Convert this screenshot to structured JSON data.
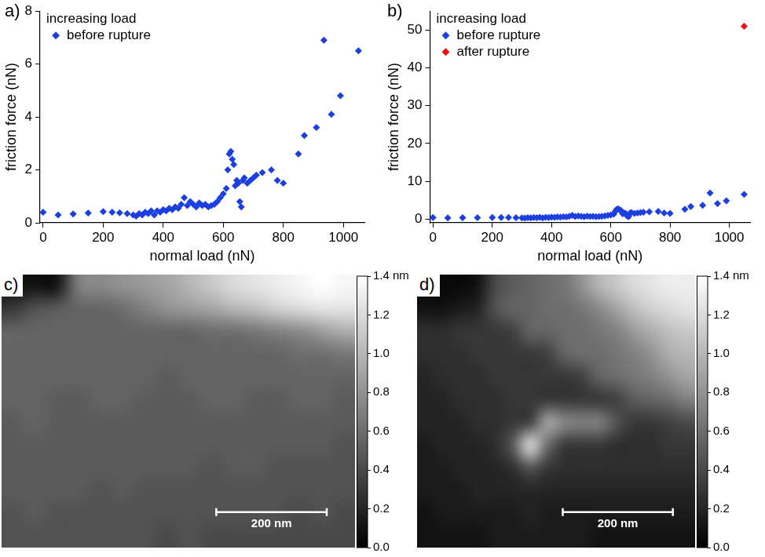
{
  "chart_data": [
    {
      "type": "scatter",
      "panel": "a)",
      "legend_title": "increasing load",
      "legend": "upper left",
      "x_label": "normal load (nN)",
      "y_label": "friction force (nN)",
      "xlim": [
        -10,
        1070
      ],
      "xticks": [
        0,
        200,
        400,
        600,
        800,
        1000
      ],
      "ylim": [
        0,
        8
      ],
      "yticks": [
        0,
        2,
        4,
        6,
        8
      ],
      "grid": false,
      "series": [
        {
          "name": "before rupture",
          "color": "#1c3fe0",
          "marker": "diamond",
          "x": [
            0,
            50,
            100,
            150,
            200,
            230,
            255,
            280,
            300,
            310,
            320,
            330,
            340,
            350,
            360,
            370,
            380,
            390,
            400,
            410,
            420,
            430,
            440,
            450,
            460,
            470,
            480,
            490,
            500,
            510,
            520,
            530,
            540,
            550,
            560,
            570,
            580,
            590,
            600,
            610,
            615,
            620,
            625,
            630,
            635,
            640,
            645,
            650,
            655,
            660,
            665,
            670,
            680,
            690,
            700,
            710,
            730,
            760,
            780,
            800,
            850,
            870,
            910,
            935,
            960,
            990,
            1050
          ],
          "values": [
            0.4,
            0.3,
            0.33,
            0.37,
            0.42,
            0.4,
            0.38,
            0.35,
            0.3,
            0.25,
            0.35,
            0.3,
            0.4,
            0.35,
            0.45,
            0.3,
            0.45,
            0.4,
            0.5,
            0.45,
            0.55,
            0.5,
            0.6,
            0.55,
            0.7,
            0.95,
            0.65,
            0.8,
            0.7,
            0.6,
            0.75,
            0.65,
            0.7,
            0.6,
            0.65,
            0.7,
            0.8,
            0.95,
            1.1,
            1.3,
            2.0,
            2.6,
            2.7,
            2.4,
            2.2,
            1.4,
            1.6,
            1.5,
            0.8,
            0.6,
            1.6,
            1.7,
            1.5,
            1.6,
            1.7,
            1.8,
            1.9,
            2.0,
            1.6,
            1.5,
            2.6,
            3.3,
            3.6,
            6.9,
            4.1,
            4.8,
            6.5
          ]
        }
      ]
    },
    {
      "type": "scatter",
      "panel": "b)",
      "legend_title": "increasing load",
      "legend": "upper left",
      "x_label": "normal load (nN)",
      "y_label": "friction force (nN)",
      "xlim": [
        -10,
        1070
      ],
      "xticks": [
        0,
        200,
        400,
        600,
        800,
        1000
      ],
      "ylim": [
        -1,
        55
      ],
      "yticks": [
        0,
        10,
        20,
        30,
        40,
        50
      ],
      "grid": false,
      "series": [
        {
          "name": "before rupture",
          "color": "#1c3fe0",
          "marker": "diamond",
          "x": [
            0,
            50,
            100,
            150,
            200,
            230,
            255,
            280,
            300,
            310,
            320,
            330,
            340,
            350,
            360,
            370,
            380,
            390,
            400,
            410,
            420,
            430,
            440,
            450,
            460,
            470,
            480,
            490,
            500,
            510,
            520,
            530,
            540,
            550,
            560,
            570,
            580,
            590,
            600,
            610,
            615,
            620,
            625,
            630,
            635,
            640,
            645,
            650,
            655,
            660,
            665,
            670,
            680,
            690,
            700,
            710,
            730,
            760,
            780,
            800,
            850,
            870,
            910,
            935,
            960,
            990,
            1050
          ],
          "values": [
            0.4,
            0.3,
            0.33,
            0.37,
            0.42,
            0.4,
            0.38,
            0.35,
            0.3,
            0.25,
            0.35,
            0.3,
            0.4,
            0.35,
            0.45,
            0.3,
            0.45,
            0.4,
            0.5,
            0.45,
            0.55,
            0.5,
            0.6,
            0.55,
            0.7,
            0.95,
            0.65,
            0.8,
            0.7,
            0.6,
            0.75,
            0.65,
            0.7,
            0.6,
            0.65,
            0.7,
            0.8,
            0.95,
            1.1,
            1.3,
            2.0,
            2.6,
            2.7,
            2.4,
            2.2,
            1.4,
            1.6,
            1.5,
            0.8,
            0.6,
            1.6,
            1.7,
            1.5,
            1.6,
            1.7,
            1.8,
            1.9,
            2.0,
            1.6,
            1.5,
            2.6,
            3.3,
            3.6,
            6.9,
            4.1,
            4.8,
            6.5
          ]
        },
        {
          "name": "after rupture",
          "color": "#f01010",
          "marker": "diamond",
          "x": [
            1050
          ],
          "values": [
            51
          ]
        }
      ]
    },
    {
      "type": "heatmap",
      "panel": "c)",
      "xlim": [
        0,
        640
      ],
      "ylim": [
        0,
        500
      ],
      "cells": [
        [
          0.1,
          0.1,
          0.1,
          0.7,
          0.75,
          0.8,
          0.85,
          0.9,
          1.0,
          1.1,
          1.2,
          1.25,
          1.3,
          1.35,
          1.4,
          1.35
        ],
        [
          0.3,
          0.45,
          0.5,
          0.55,
          0.55,
          0.6,
          0.7,
          0.8,
          0.85,
          0.9,
          1.0,
          1.05,
          1.15,
          1.2,
          1.25,
          1.25
        ],
        [
          0.55,
          0.55,
          0.55,
          0.55,
          0.55,
          0.55,
          0.55,
          0.55,
          0.55,
          0.6,
          0.6,
          0.65,
          0.7,
          0.75,
          0.85,
          0.95
        ],
        [
          0.55,
          0.55,
          0.55,
          0.55,
          0.55,
          0.55,
          0.55,
          0.55,
          0.55,
          0.55,
          0.55,
          0.55,
          0.55,
          0.6,
          0.6,
          0.65
        ],
        [
          0.55,
          0.55,
          0.55,
          0.55,
          0.55,
          0.55,
          0.55,
          0.5,
          0.55,
          0.55,
          0.55,
          0.55,
          0.55,
          0.55,
          0.55,
          0.55
        ],
        [
          0.55,
          0.55,
          0.5,
          0.5,
          0.55,
          0.55,
          0.5,
          0.5,
          0.5,
          0.55,
          0.55,
          0.5,
          0.5,
          0.55,
          0.55,
          0.5
        ],
        [
          0.5,
          0.55,
          0.5,
          0.5,
          0.5,
          0.5,
          0.5,
          0.5,
          0.5,
          0.5,
          0.5,
          0.5,
          0.5,
          0.5,
          0.5,
          0.5
        ],
        [
          0.5,
          0.5,
          0.5,
          0.5,
          0.5,
          0.5,
          0.5,
          0.5,
          0.5,
          0.5,
          0.5,
          0.5,
          0.5,
          0.5,
          0.5,
          0.45
        ],
        [
          0.5,
          0.5,
          0.5,
          0.5,
          0.5,
          0.5,
          0.5,
          0.5,
          0.5,
          0.45,
          0.5,
          0.5,
          0.45,
          0.45,
          0.45,
          0.45
        ],
        [
          0.5,
          0.5,
          0.5,
          0.5,
          0.45,
          0.5,
          0.45,
          0.45,
          0.45,
          0.45,
          0.45,
          0.45,
          0.45,
          0.45,
          0.45,
          0.45
        ],
        [
          0.45,
          0.5,
          0.45,
          0.45,
          0.45,
          0.45,
          0.45,
          0.45,
          0.45,
          0.45,
          0.45,
          0.45,
          0.45,
          0.4,
          0.45,
          0.4
        ],
        [
          0.45,
          0.45,
          0.45,
          0.45,
          0.45,
          0.45,
          0.45,
          0.4,
          0.45,
          0.4,
          0.4,
          0.4,
          0.4,
          0.4,
          0.4,
          0.4
        ]
      ],
      "colorbar": {
        "range": [
          0,
          1.4
        ],
        "ticks": [
          {
            "value": 0,
            "label": "0.0"
          },
          0.2,
          0.4,
          0.6,
          0.8,
          {
            "value": 1,
            "label": "1.0"
          },
          1.2,
          {
            "value": 1.4,
            "label": "1.4 nm"
          }
        ]
      },
      "scale_bar": {
        "length": 200,
        "label": "200 nm"
      }
    },
    {
      "type": "heatmap",
      "panel": "d)",
      "xlim": [
        0,
        505
      ],
      "ylim": [
        0,
        500
      ],
      "cells": [
        [
          0.05,
          0.05,
          0.05,
          0.1,
          0.4,
          0.5,
          0.55,
          0.6,
          0.65,
          0.8,
          1.0,
          1.1,
          1.2,
          1.25,
          1.3,
          1.3
        ],
        [
          0.1,
          0.1,
          0.15,
          0.2,
          0.45,
          0.55,
          0.55,
          0.6,
          0.6,
          0.65,
          0.75,
          0.9,
          1.05,
          1.15,
          1.2,
          1.25
        ],
        [
          0.25,
          0.25,
          0.3,
          0.3,
          0.3,
          0.35,
          0.55,
          0.55,
          0.6,
          0.6,
          0.65,
          0.7,
          0.85,
          0.95,
          1.05,
          1.1
        ],
        [
          0.25,
          0.25,
          0.25,
          0.3,
          0.3,
          0.3,
          0.3,
          0.35,
          0.55,
          0.6,
          0.6,
          0.65,
          0.7,
          0.8,
          0.95,
          1.0
        ],
        [
          0.2,
          0.25,
          0.25,
          0.25,
          0.3,
          0.3,
          0.3,
          0.3,
          0.3,
          0.35,
          0.55,
          0.6,
          0.65,
          0.7,
          0.8,
          0.9
        ],
        [
          0.2,
          0.2,
          0.25,
          0.25,
          0.25,
          0.3,
          0.3,
          0.3,
          0.3,
          0.3,
          0.3,
          0.35,
          0.5,
          0.55,
          0.6,
          0.7
        ],
        [
          0.2,
          0.2,
          0.2,
          0.25,
          0.25,
          0.3,
          0.35,
          0.9,
          0.75,
          0.7,
          0.7,
          0.45,
          0.3,
          0.3,
          0.35,
          0.4
        ],
        [
          0.15,
          0.2,
          0.2,
          0.2,
          0.25,
          0.5,
          1.2,
          0.6,
          0.3,
          0.3,
          0.3,
          0.25,
          0.25,
          0.25,
          0.3,
          0.3
        ],
        [
          0.15,
          0.15,
          0.2,
          0.2,
          0.2,
          0.25,
          0.45,
          0.3,
          0.25,
          0.25,
          0.25,
          0.25,
          0.25,
          0.25,
          0.25,
          0.25
        ],
        [
          0.15,
          0.15,
          0.15,
          0.2,
          0.2,
          0.2,
          0.2,
          0.2,
          0.2,
          0.2,
          0.2,
          0.2,
          0.2,
          0.2,
          0.2,
          0.2
        ],
        [
          0.1,
          0.15,
          0.15,
          0.15,
          0.15,
          0.15,
          0.2,
          0.15,
          0.15,
          0.15,
          0.15,
          0.15,
          0.15,
          0.15,
          0.15,
          0.15
        ],
        [
          0.1,
          0.1,
          0.1,
          0.1,
          0.15,
          0.15,
          0.15,
          0.15,
          0.15,
          0.15,
          0.1,
          0.1,
          0.1,
          0.1,
          0.1,
          0.1
        ]
      ],
      "colorbar": {
        "range": [
          0,
          1.4
        ],
        "ticks": [
          {
            "value": 0,
            "label": "0.0"
          },
          0.2,
          0.4,
          0.6,
          0.8,
          {
            "value": 1,
            "label": "1.0"
          },
          1.2,
          {
            "value": 1.4,
            "label": "1.4 nm"
          }
        ]
      },
      "scale_bar": {
        "length": 200,
        "label": "200 nm"
      }
    }
  ]
}
